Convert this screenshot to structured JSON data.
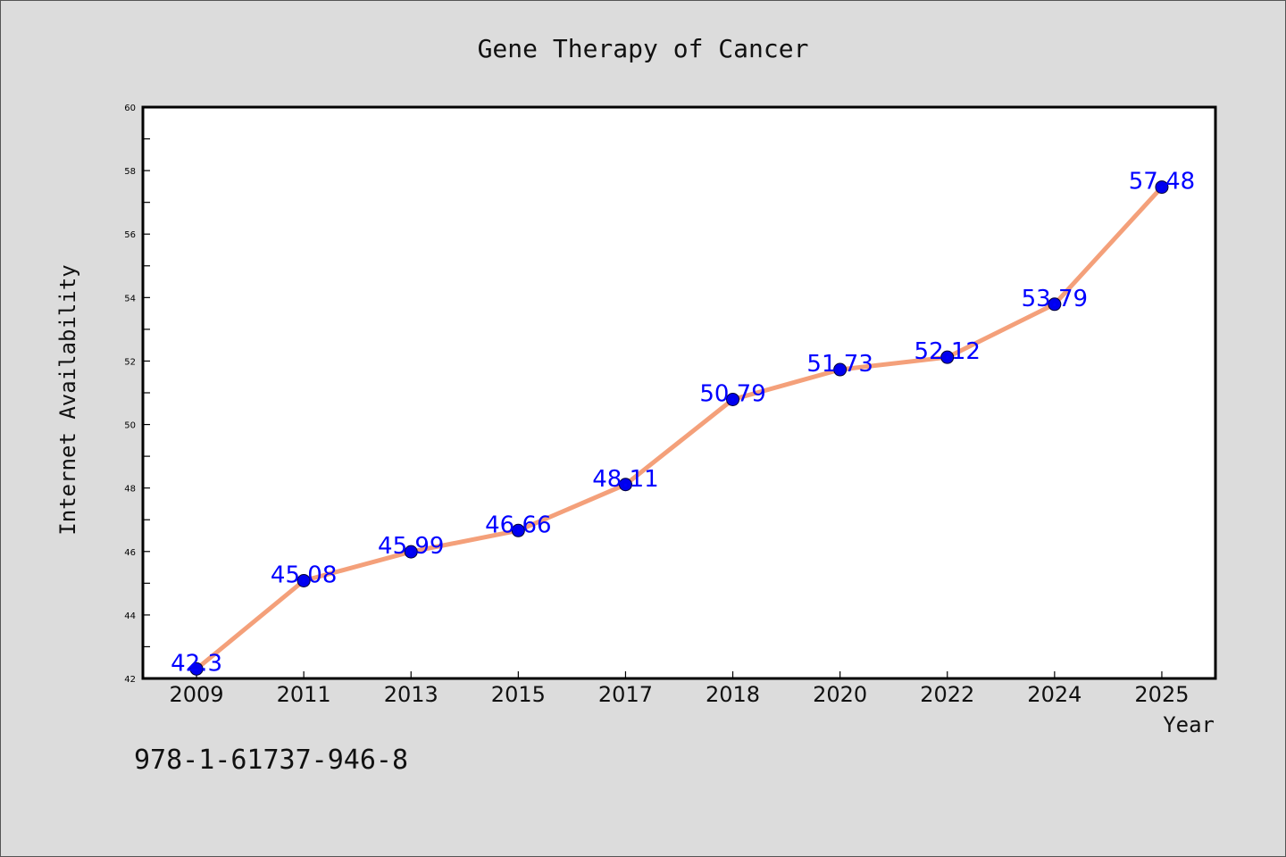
{
  "chart_data": {
    "type": "line",
    "title": "Gene Therapy of Cancer",
    "xlabel": "Year",
    "ylabel": "Internet Availability",
    "categories": [
      "2009",
      "2011",
      "2013",
      "2015",
      "2017",
      "2018",
      "2020",
      "2022",
      "2024",
      "2025"
    ],
    "values": [
      42.3,
      45.08,
      45.99,
      46.66,
      48.11,
      50.79,
      51.73,
      52.12,
      53.79,
      57.48
    ],
    "labels": [
      "42.3",
      "45.08",
      "45.99",
      "46.66",
      "48.11",
      "50.79",
      "51.73",
      "52.12",
      "53.79",
      "57.48"
    ],
    "ylim": [
      42,
      60
    ],
    "yticks": [
      42,
      44,
      46,
      48,
      50,
      52,
      54,
      56,
      58,
      60
    ],
    "grid": false,
    "line_color": "#f4a07a",
    "marker_color": "#0000ee",
    "label_color": "#0000ff"
  },
  "footer": {
    "code": "978-1-61737-946-8"
  }
}
